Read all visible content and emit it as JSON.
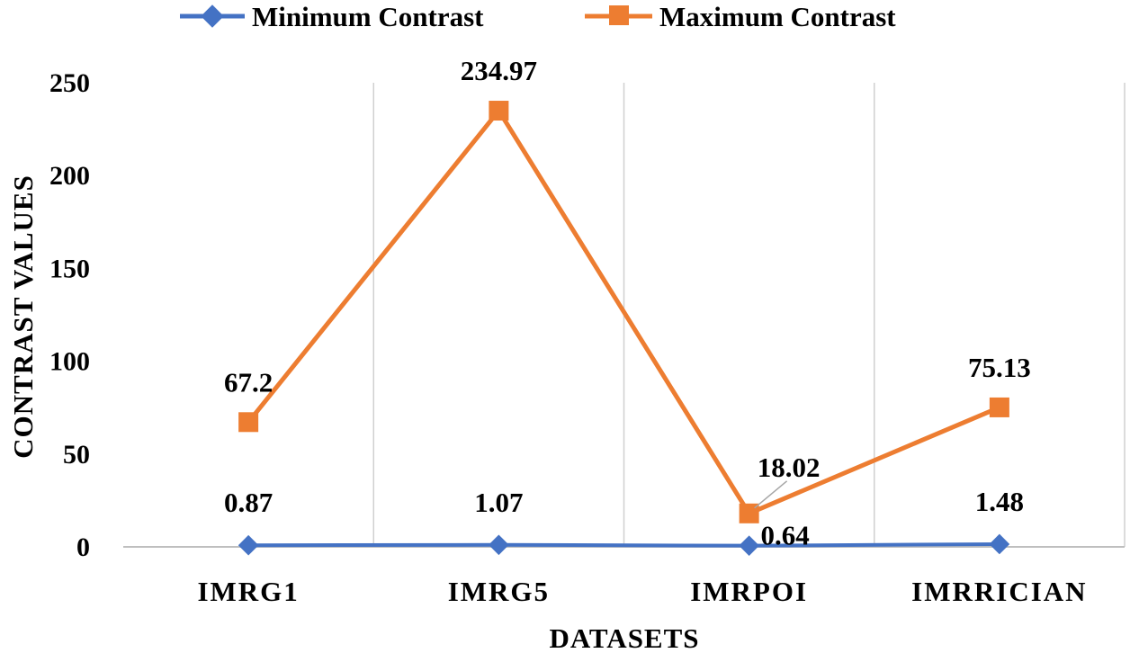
{
  "chart_data": {
    "type": "line",
    "xlabel": "DATASETS",
    "ylabel": "CONTRAST VALUES",
    "categories": [
      "IMRG1",
      "IMRG5",
      "IMRPOI",
      "IMRRICIAN"
    ],
    "ylim": [
      0,
      250
    ],
    "yticks": [
      "0",
      "50",
      "100",
      "150",
      "200",
      "250"
    ],
    "grid": "vertical",
    "legend_position": "top-center",
    "series": [
      {
        "name": "Minimum Contrast",
        "color": "#4472C4",
        "marker": "diamond",
        "values": [
          0.87,
          1.07,
          0.64,
          1.48
        ],
        "labels": [
          "0.87",
          "1.07",
          "0.64",
          "1.48"
        ]
      },
      {
        "name": "Maximum Contrast",
        "color": "#ED7D31",
        "marker": "square",
        "values": [
          67.2,
          234.97,
          18.02,
          75.13
        ],
        "labels": [
          "67.2",
          "234.97",
          "18.02",
          "75.13"
        ]
      }
    ]
  }
}
